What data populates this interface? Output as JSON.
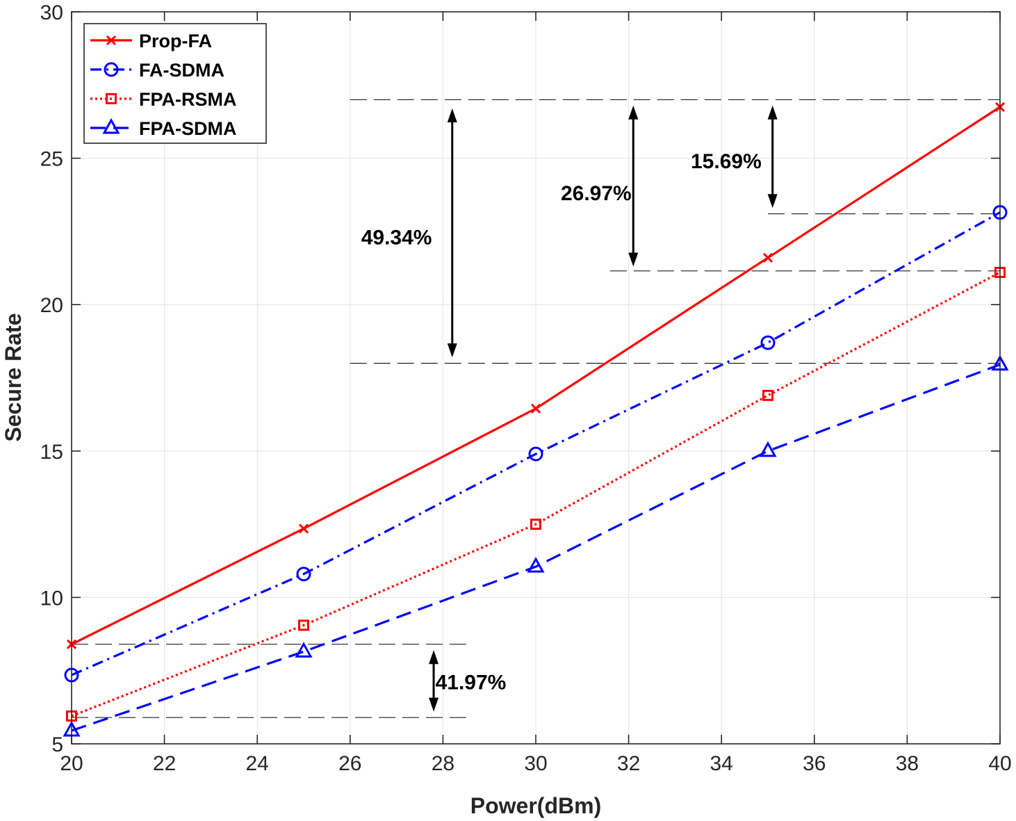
{
  "chart_data": {
    "type": "line",
    "title": "",
    "xlabel": "Power(dBm)",
    "ylabel": "Secure Rate",
    "xlim": [
      20,
      40
    ],
    "ylim": [
      5,
      30
    ],
    "xticks": [
      20,
      22,
      24,
      26,
      28,
      30,
      32,
      34,
      36,
      38,
      40
    ],
    "yticks": [
      5,
      10,
      15,
      20,
      25,
      30
    ],
    "grid": true,
    "legend_position": "top-left",
    "x": [
      20,
      25,
      30,
      35,
      40
    ],
    "series": [
      {
        "name": "Prop-FA",
        "color": "#ff0000",
        "dash": "solid",
        "marker": "x",
        "values": [
          8.4,
          12.35,
          16.45,
          21.6,
          26.75
        ]
      },
      {
        "name": "FA-SDMA",
        "color": "#0000ff",
        "dash": "dashdot",
        "marker": "circle",
        "values": [
          7.35,
          10.8,
          14.9,
          18.7,
          23.15
        ]
      },
      {
        "name": "FPA-RSMA",
        "color": "#ff0000",
        "dash": "dotted",
        "marker": "square",
        "values": [
          5.95,
          9.05,
          12.5,
          16.9,
          21.1
        ]
      },
      {
        "name": "FPA-SDMA",
        "color": "#0000ff",
        "dash": "dashed",
        "marker": "triangle",
        "values": [
          5.45,
          8.15,
          11.05,
          15.0,
          17.95
        ]
      }
    ],
    "annotations": [
      {
        "text": "49.34%",
        "arrow_x": 28.2,
        "arrow_y": [
          18.2,
          26.7
        ],
        "label_x": 27.0,
        "label_y": 22.3
      },
      {
        "text": "26.97%",
        "arrow_x": 32.1,
        "arrow_y": [
          21.3,
          26.8
        ],
        "label_x": 31.3,
        "label_y": 23.8
      },
      {
        "text": "15.69%",
        "arrow_x": 35.1,
        "arrow_y": [
          23.3,
          26.8
        ],
        "label_x": 34.1,
        "label_y": 24.9
      },
      {
        "text": "41.97%",
        "arrow_x": 27.8,
        "arrow_y": [
          6.1,
          8.2
        ],
        "label_x": 28.6,
        "label_y": 7.1
      }
    ],
    "reference_lines": [
      {
        "y": 27.0,
        "x": [
          26,
          40
        ]
      },
      {
        "y": 23.1,
        "x": [
          35,
          40
        ]
      },
      {
        "y": 21.15,
        "x": [
          31.6,
          40
        ]
      },
      {
        "y": 18.0,
        "x": [
          26,
          40
        ]
      },
      {
        "y": 8.4,
        "x": [
          20,
          28.5
        ]
      },
      {
        "y": 5.9,
        "x": [
          20,
          28.5
        ]
      }
    ]
  }
}
